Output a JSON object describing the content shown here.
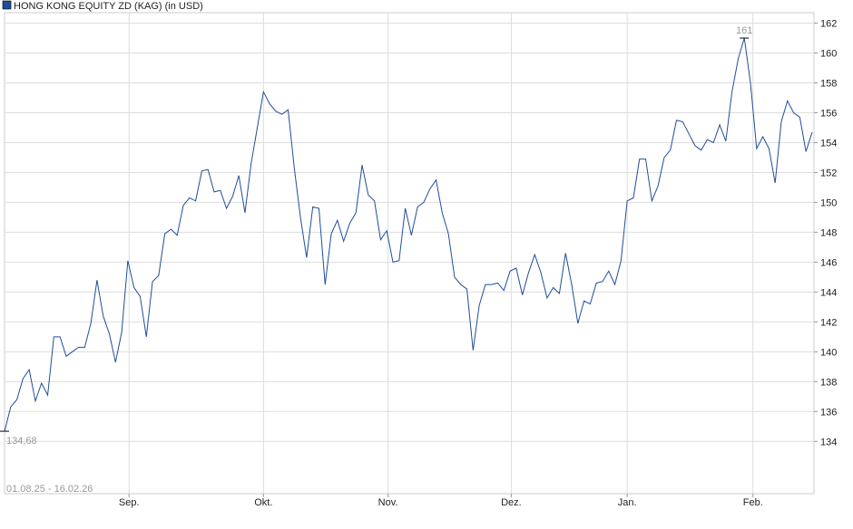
{
  "chart_data": {
    "type": "line",
    "title": "HONG KONG EQUITY ZD (KAG) (in USD)",
    "subtitle": "01.08.25 - 16.02.26",
    "series": [
      {
        "name": "HONG KONG EQUITY ZD (KAG) (in USD)",
        "color": "#1f4e9a",
        "values": [
          134.68,
          136.3,
          136.8,
          138.2,
          138.8,
          136.7,
          137.9,
          137.1,
          141.0,
          141.0,
          139.7,
          140.0,
          140.3,
          140.3,
          141.9,
          144.8,
          142.4,
          141.2,
          139.3,
          141.3,
          146.1,
          144.3,
          143.7,
          141.0,
          144.7,
          145.1,
          147.9,
          148.2,
          147.8,
          149.8,
          150.3,
          150.1,
          152.1,
          152.2,
          150.7,
          150.8,
          149.6,
          150.4,
          151.8,
          149.3,
          152.6,
          155.0,
          157.4,
          156.6,
          156.1,
          155.9,
          156.2,
          152.3,
          149.0,
          146.3,
          149.7,
          149.6,
          144.5,
          147.9,
          148.8,
          147.4,
          148.6,
          149.3,
          152.5,
          150.5,
          150.1,
          147.5,
          148.1,
          146.0,
          146.1,
          149.6,
          147.8,
          149.7,
          150.0,
          150.9,
          151.5,
          149.3,
          147.9,
          145.0,
          144.5,
          144.2,
          140.1,
          143.1,
          144.5,
          144.5,
          144.6,
          144.1,
          145.4,
          145.6,
          143.8,
          145.3,
          146.5,
          145.3,
          143.6,
          144.3,
          143.9,
          146.6,
          144.5,
          141.9,
          143.4,
          143.2,
          144.6,
          144.7,
          145.4,
          144.5,
          146.1,
          150.1,
          150.3,
          152.9,
          152.9,
          150.1,
          151.1,
          153.0,
          153.5,
          155.5,
          155.4,
          154.6,
          153.8,
          153.5,
          154.2,
          154.0,
          155.2,
          154.1,
          157.4,
          159.6,
          161.0,
          158.0,
          153.6,
          154.4,
          153.6,
          151.3,
          155.4,
          156.8,
          156.0,
          155.7,
          153.4,
          154.7
        ],
        "value_labels": [
          "134,68",
          null,
          null,
          null,
          null,
          null,
          null,
          null,
          null,
          null,
          null,
          null,
          null,
          null,
          null,
          null,
          null,
          null,
          null,
          null,
          null,
          null,
          null,
          null,
          null,
          null,
          null,
          null,
          null,
          null,
          null,
          null,
          null,
          null,
          null,
          null,
          null,
          null,
          null,
          null,
          null,
          null,
          null,
          null,
          null,
          null,
          null,
          null,
          null,
          null,
          null,
          null,
          null,
          null,
          null,
          null,
          null,
          null,
          null,
          null,
          null,
          null,
          null,
          null,
          null,
          null,
          null,
          null,
          null,
          null,
          null,
          null,
          null,
          null,
          null,
          null,
          null,
          null,
          null,
          null,
          null,
          null,
          null,
          null,
          null,
          null,
          null,
          null,
          null,
          null,
          null,
          null,
          null,
          null,
          null,
          null,
          null,
          null,
          null,
          null,
          null,
          null,
          null,
          null,
          null,
          null,
          null,
          null,
          null,
          null,
          null,
          null,
          null,
          null,
          null,
          null,
          null,
          null,
          null,
          null,
          "161",
          null,
          null,
          null,
          null,
          null,
          null,
          null,
          null,
          null,
          null,
          null
        ]
      }
    ],
    "xlim": [
      0,
      131.3
    ],
    "xticks": [
      {
        "value": 20.2,
        "label": "Sep."
      },
      {
        "value": 42.0,
        "label": "Okt."
      },
      {
        "value": 62.2,
        "label": "Nov."
      },
      {
        "value": 82.2,
        "label": "Dez."
      },
      {
        "value": 101.0,
        "label": "Jan."
      },
      {
        "value": 121.4,
        "label": "Feb."
      }
    ],
    "ylim": [
      130.5,
      162.7
    ],
    "yticks": [
      134,
      136,
      138,
      140,
      142,
      144,
      146,
      148,
      150,
      152,
      154,
      156,
      158,
      160,
      162
    ],
    "grid": true
  }
}
